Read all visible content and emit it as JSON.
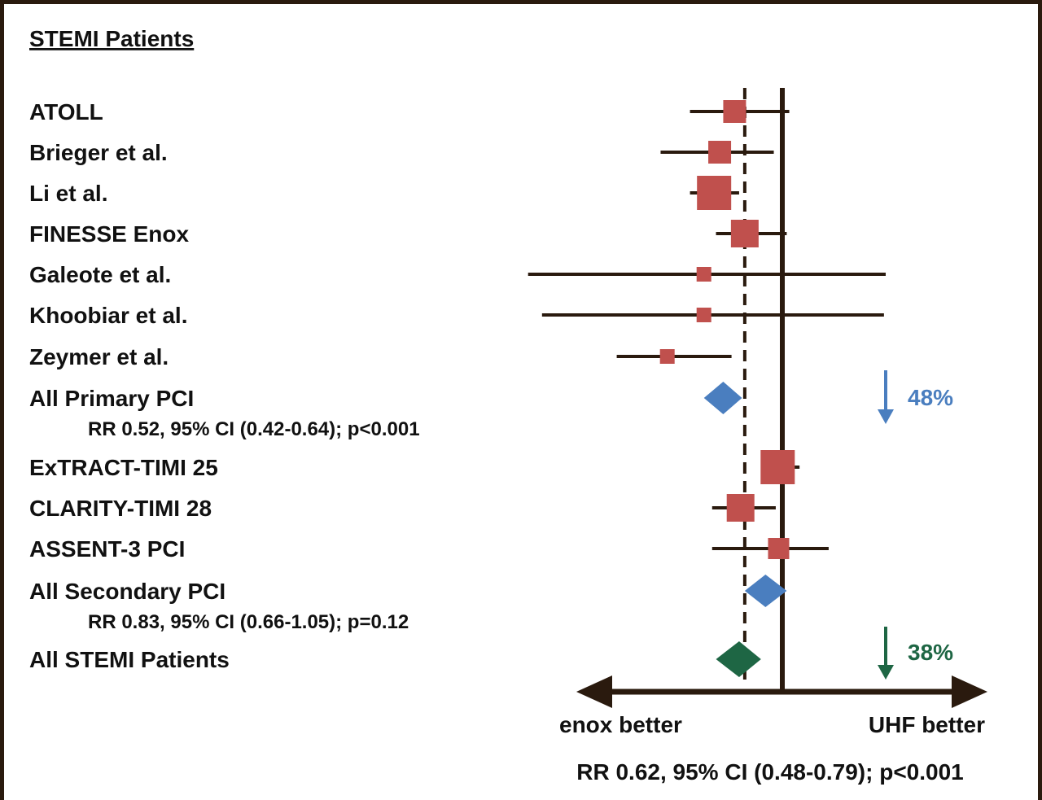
{
  "chart_data": {
    "type": "forest",
    "title": "STEMI Patients",
    "scale": "log",
    "reference_value": 1,
    "dashed_line_value": 0.66,
    "colors": {
      "study": "#c0504d",
      "primary": "#4a7ebf",
      "secondary": "#4a7ebf",
      "overall": "#1e6644",
      "axis": "#2a1a0e"
    },
    "rows": [
      {
        "label": "ATOLL",
        "kind": "study",
        "rr": 0.59,
        "lo": 0.36,
        "hi": 1.08,
        "weight": 28
      },
      {
        "label": "Brieger et al.",
        "kind": "study",
        "rr": 0.5,
        "lo": 0.26,
        "hi": 0.91,
        "weight": 28
      },
      {
        "label": "Li et al.",
        "kind": "study",
        "rr": 0.47,
        "lo": 0.36,
        "hi": 0.62,
        "weight": 42
      },
      {
        "label": "FINESSE Enox",
        "kind": "study",
        "rr": 0.66,
        "lo": 0.48,
        "hi": 1.05,
        "weight": 34
      },
      {
        "label": "Galeote et al.",
        "kind": "study",
        "rr": 0.42,
        "lo": 0.06,
        "hi": 3.14,
        "weight": 18
      },
      {
        "label": "Khoobiar et al.",
        "kind": "study",
        "rr": 0.42,
        "lo": 0.07,
        "hi": 3.08,
        "weight": 18
      },
      {
        "label": "Zeymer et al.",
        "kind": "study",
        "rr": 0.28,
        "lo": 0.16,
        "hi": 0.57,
        "weight": 18
      },
      {
        "label": "All Primary PCI",
        "kind": "primary",
        "rr": 0.52,
        "lo": 0.42,
        "hi": 0.64,
        "sublabel": "RR 0.52, 95% CI (0.42-0.64); p<0.001"
      },
      {
        "label": "ExTRACT-TIMI 25",
        "kind": "study",
        "rr": 0.95,
        "lo": 0.79,
        "hi": 1.21,
        "weight": 42
      },
      {
        "label": "CLARITY-TIMI 28",
        "kind": "study",
        "rr": 0.63,
        "lo": 0.46,
        "hi": 0.93,
        "weight": 34
      },
      {
        "label": "ASSENT-3 PCI",
        "kind": "study",
        "rr": 0.96,
        "lo": 0.46,
        "hi": 1.67,
        "weight": 26
      },
      {
        "label": "All Secondary PCI",
        "kind": "secondary",
        "rr": 0.83,
        "lo": 0.66,
        "hi": 1.05,
        "sublabel": "RR 0.83, 95% CI (0.66-1.05); p=0.12"
      },
      {
        "label": "All STEMI Patients",
        "kind": "overall",
        "rr": 0.62,
        "lo": 0.48,
        "hi": 0.79
      }
    ],
    "annotations": {
      "primary_reduction": "48%",
      "overall_reduction": "38%"
    },
    "left_label": "enox better",
    "right_label": "UHF better",
    "summary": "RR 0.62, 95% CI (0.48-0.79); p<0.001"
  }
}
